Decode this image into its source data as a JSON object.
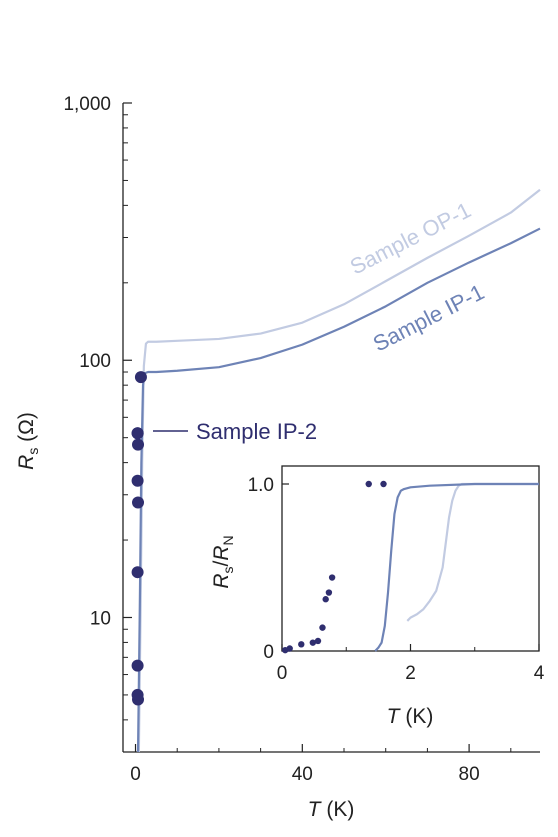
{
  "chart_data": [
    {
      "type": "line",
      "yscale": "log",
      "xlim": [
        -3,
        97
      ],
      "ylim": [
        3,
        1000
      ],
      "xticks": [
        0,
        40,
        80
      ],
      "xtick_labels": [
        "0",
        "40",
        "80"
      ],
      "yticks": [
        10,
        100,
        1000
      ],
      "ytick_labels": [
        "10",
        "100",
        "1,000"
      ],
      "xlabel": {
        "italic": "T",
        "rest": " (K)"
      },
      "ylabel": {
        "italic": "R",
        "sub": "s",
        "rest": " (Ω)"
      },
      "grid": false,
      "colors": {
        "op1": "#c2cbe2",
        "ip1": "#6e83b6",
        "ip2": "#2f2e6f"
      },
      "series": [
        {
          "name": "Sample OP-1",
          "label": "Sample OP-1",
          "style": "line",
          "color": "#c2cbe2",
          "x": [
            0.8,
            1.2,
            1.6,
            2.0,
            2.5,
            3.0,
            5,
            10,
            20,
            30,
            40,
            50,
            60,
            70,
            80,
            90,
            97
          ],
          "y": [
            3,
            10,
            40,
            95,
            116,
            118,
            118,
            119,
            121,
            127,
            140,
            165,
            203,
            250,
            305,
            375,
            460
          ]
        },
        {
          "name": "Sample IP-1",
          "label": "Sample IP-1",
          "style": "line",
          "color": "#6e83b6",
          "x": [
            0.6,
            1.0,
            1.4,
            1.8,
            2.2,
            3.0,
            5,
            10,
            20,
            30,
            40,
            50,
            60,
            70,
            80,
            90,
            97
          ],
          "y": [
            3,
            10,
            40,
            80,
            89,
            90,
            90,
            91,
            94,
            102,
            115,
            135,
            162,
            200,
            240,
            285,
            325
          ]
        },
        {
          "name": "Sample IP-2",
          "label": "Sample IP-2",
          "style": "scatter",
          "color": "#2f2e6f",
          "x": [
            0.6,
            0.5,
            0.5,
            0.5,
            0.6,
            0.5,
            0.6,
            0.5,
            0.5,
            1.3
          ],
          "y": [
            4.8,
            5.0,
            6.5,
            15,
            28,
            34,
            47,
            52,
            52,
            86
          ]
        }
      ]
    },
    {
      "type": "line",
      "xlim": [
        0,
        4
      ],
      "ylim": [
        0,
        1.0
      ],
      "xticks": [
        0,
        2,
        4
      ],
      "xtick_labels": [
        "0",
        "2",
        "4"
      ],
      "yticks": [
        0,
        1.0
      ],
      "ytick_labels": [
        "0",
        "1.0"
      ],
      "xlabel": {
        "italic": "T",
        "rest": " (K)"
      },
      "ylabel": {
        "italic": "R",
        "sub": "s",
        "slash": "/",
        "italic2": "R",
        "sub2": "N"
      },
      "grid": false,
      "series": [
        {
          "name": "Sample OP-1",
          "style": "line",
          "color": "#c2cbe2",
          "x": [
            1.95,
            2.0,
            2.1,
            2.2,
            2.3,
            2.4,
            2.5,
            2.55,
            2.6,
            2.65,
            2.7,
            2.75,
            2.8,
            3.0,
            3.5,
            4.0
          ],
          "y": [
            0.18,
            0.2,
            0.22,
            0.25,
            0.3,
            0.36,
            0.5,
            0.65,
            0.8,
            0.9,
            0.96,
            0.99,
            1.0,
            1.0,
            1.0,
            1.0
          ]
        },
        {
          "name": "Sample IP-1",
          "style": "line",
          "color": "#6e83b6",
          "x": [
            1.45,
            1.5,
            1.55,
            1.6,
            1.65,
            1.7,
            1.75,
            1.8,
            1.85,
            1.9,
            2.0,
            2.3,
            3.0,
            4.0
          ],
          "y": [
            0.0,
            0.02,
            0.05,
            0.15,
            0.35,
            0.6,
            0.82,
            0.92,
            0.96,
            0.97,
            0.98,
            0.99,
            1.0,
            1.0
          ]
        },
        {
          "name": "Sample IP-2",
          "style": "scatter",
          "color": "#2f2e6f",
          "x": [
            0.05,
            0.12,
            0.3,
            0.48,
            0.56,
            0.63,
            0.68,
            0.73,
            0.78,
            1.35,
            1.58
          ],
          "y": [
            0.005,
            0.015,
            0.04,
            0.05,
            0.06,
            0.14,
            0.31,
            0.35,
            0.44,
            1.0,
            1.0
          ]
        }
      ]
    }
  ]
}
